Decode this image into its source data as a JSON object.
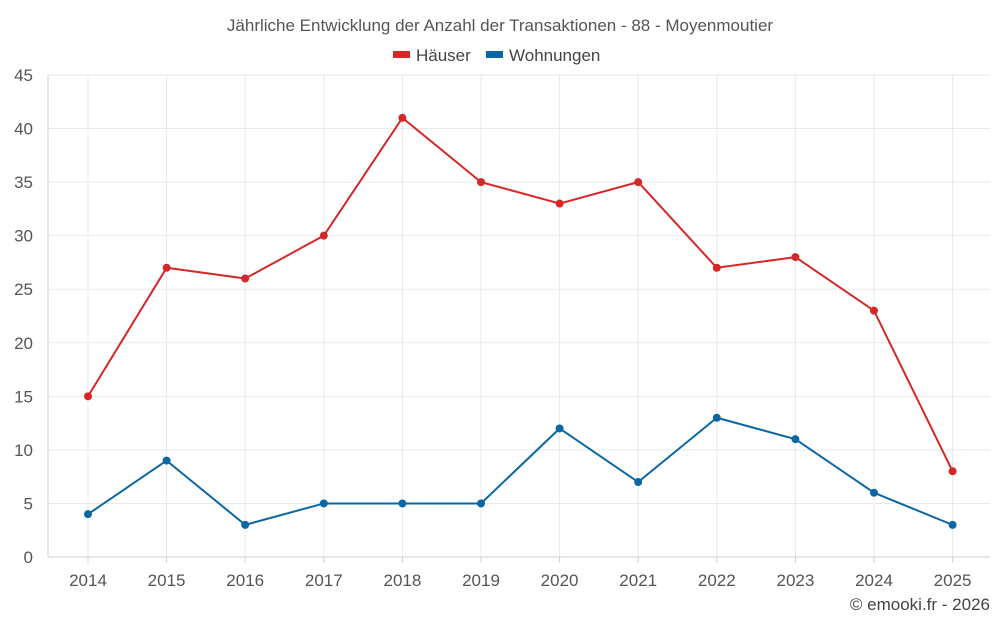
{
  "chart_data": {
    "type": "line",
    "title": "Jährliche Entwicklung der Anzahl der Transaktionen - 88 - Moyenmoutier",
    "categories": [
      "2014",
      "2015",
      "2016",
      "2017",
      "2018",
      "2019",
      "2020",
      "2021",
      "2022",
      "2023",
      "2024",
      "2025"
    ],
    "series": [
      {
        "name": "Häuser",
        "color": "#d62728",
        "values": [
          15,
          27,
          26,
          30,
          41,
          35,
          33,
          35,
          27,
          28,
          23,
          8
        ]
      },
      {
        "name": "Wohnungen",
        "color": "#0a67a3",
        "values": [
          4,
          9,
          3,
          5,
          5,
          5,
          12,
          7,
          13,
          11,
          6,
          3
        ]
      }
    ],
    "ylim": [
      0,
      45
    ],
    "yticks": [
      0,
      5,
      10,
      15,
      20,
      25,
      30,
      35,
      40,
      45
    ],
    "grid": true,
    "legend": "top-center",
    "xlabel": "",
    "ylabel": ""
  },
  "credit": "© emooki.fr - 2026"
}
